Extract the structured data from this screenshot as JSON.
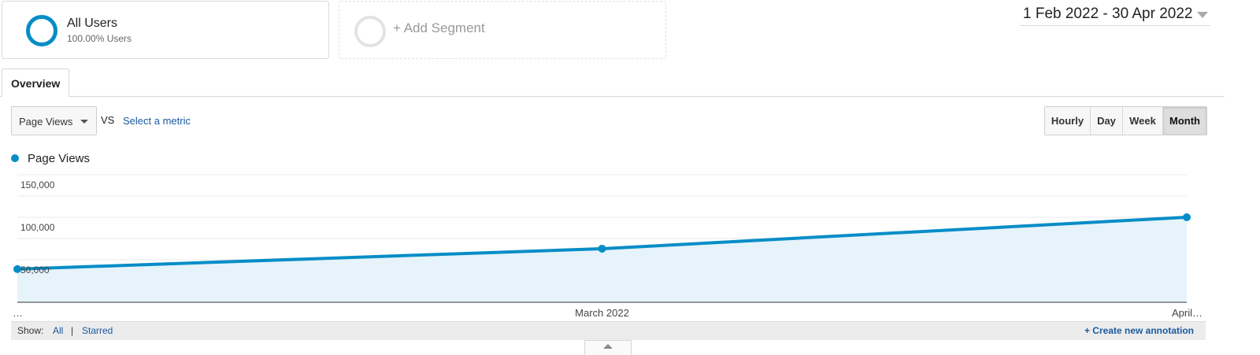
{
  "segments": {
    "all_users": {
      "title": "All Users",
      "subtitle": "100.00% Users"
    },
    "add_segment": {
      "label": "+ Add Segment"
    }
  },
  "date_range": {
    "text": "1 Feb 2022 - 30 Apr 2022"
  },
  "tabs": [
    {
      "label": "Overview",
      "active": true
    }
  ],
  "metric": {
    "selected": "Page Views",
    "vs": "VS",
    "select_metric": "Select a metric"
  },
  "granularity": {
    "options": [
      "Hourly",
      "Day",
      "Week",
      "Month"
    ],
    "active": "Month"
  },
  "legend": {
    "label": "Page Views",
    "color": "#058dc7"
  },
  "chart_data": {
    "type": "area",
    "x": [
      "…",
      "March 2022",
      "April…"
    ],
    "series": [
      {
        "name": "Page Views",
        "values": [
          39000,
          63000,
          100000
        ]
      }
    ],
    "ylim": [
      0,
      150000
    ],
    "yticks": [
      "150,000",
      "100,000",
      "50,000"
    ],
    "ytick_values": [
      150000,
      100000,
      50000
    ],
    "grid": true,
    "line_color": "#058dc7",
    "fill_color": "#e6f3fa"
  },
  "footer": {
    "show_label": "Show:",
    "all": "All",
    "separator": "|",
    "starred": "Starred",
    "create_annotation": "+ Create new annotation"
  }
}
